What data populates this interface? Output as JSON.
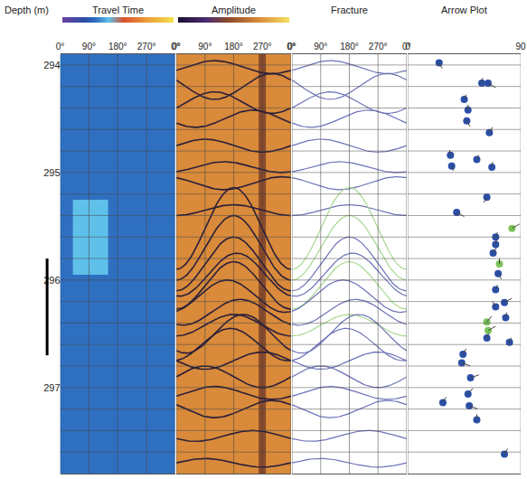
{
  "chart_data": {
    "type": "borehole_log",
    "depth_label": "Depth (m)",
    "ylim": [
      293.9,
      297.8
    ],
    "yticks": [
      294,
      295,
      296,
      297
    ],
    "yminor": [
      294.2,
      294.4,
      294.6,
      294.8,
      295.2,
      295.4,
      295.6,
      295.8,
      296.2,
      296.4,
      296.6,
      296.8,
      297.2,
      297.4,
      297.6
    ],
    "grid": true,
    "marked_interval": [
      295.8,
      296.7
    ],
    "tracks": [
      {
        "title": "Travel Time",
        "type": "heatmap",
        "xlim": [
          0,
          360
        ],
        "xticks": [
          {
            "value": 0,
            "label": "0°"
          },
          {
            "value": 90,
            "label": "90°"
          },
          {
            "value": 180,
            "label": "180°"
          },
          {
            "value": 270,
            "label": "270°"
          },
          {
            "value": 360,
            "label": "0°"
          }
        ],
        "x": [
          0,
          40,
          150,
          360
        ],
        "y": [
          293.9,
          295.25,
          295.95,
          297.8
        ],
        "cells": [
          [
            0.3,
            0.3,
            0.3
          ],
          [
            0.3,
            0.42,
            0.3
          ],
          [
            0.3,
            0.3,
            0.3
          ]
        ],
        "zlim": [
          0,
          1
        ]
      },
      {
        "title": "Amplitude",
        "type": "heatmap_fractures",
        "xlim": [
          0,
          360
        ],
        "xticks": [
          {
            "value": 0,
            "label": "0°"
          },
          {
            "value": 90,
            "label": "90°"
          },
          {
            "value": 180,
            "label": "180°"
          },
          {
            "value": 270,
            "label": "270°"
          },
          {
            "value": 360,
            "label": "0°"
          }
        ],
        "x": [
          0,
          258,
          282,
          360
        ],
        "y": [
          293.9,
          297.8
        ],
        "cells": [
          [
            0.72,
            0.45,
            0.72
          ]
        ],
        "zlim": [
          0,
          1
        ]
      },
      {
        "title": "Fracture",
        "type": "sinusoid",
        "xlim": [
          0,
          360
        ],
        "xticks": [
          {
            "value": 0,
            "label": "0°"
          },
          {
            "value": 90,
            "label": "90°"
          },
          {
            "value": 180,
            "label": "180°"
          },
          {
            "value": 270,
            "label": "270°"
          },
          {
            "value": 360,
            "label": "0°"
          }
        ]
      },
      {
        "title": "Arrow Plot",
        "type": "tadpole",
        "xlim": [
          0,
          90
        ],
        "xticks": [
          0,
          90
        ]
      }
    ],
    "fractures": [
      {
        "depth": 294.02,
        "amplitude": 0.06,
        "azimuth": 300,
        "color": "#6d72b8"
      },
      {
        "depth": 294.2,
        "amplitude": 0.12,
        "azimuth": 120,
        "color": "#6d72b8"
      },
      {
        "depth": 294.35,
        "amplitude": 0.1,
        "azimuth": 300,
        "color": "#6d72b8"
      },
      {
        "depth": 294.5,
        "amplitude": 0.08,
        "azimuth": 60,
        "color": "#6d72b8"
      },
      {
        "depth": 294.75,
        "amplitude": 0.06,
        "azimuth": 270,
        "color": "#6d72b8"
      },
      {
        "depth": 294.95,
        "amplitude": 0.05,
        "azimuth": 330,
        "color": "#6d72b8"
      },
      {
        "depth": 295.1,
        "amplitude": 0.06,
        "azimuth": 150,
        "color": "#6d72b8"
      },
      {
        "depth": 295.35,
        "amplitude": 0.05,
        "azimuth": 0,
        "color": "#6d72b8"
      },
      {
        "depth": 295.52,
        "amplitude": 0.38,
        "azimuth": 0,
        "color": "#a8d890"
      },
      {
        "depth": 295.7,
        "amplitude": 0.3,
        "azimuth": 0,
        "color": "#a8d890"
      },
      {
        "depth": 295.85,
        "amplitude": 0.25,
        "azimuth": 0,
        "color": "#6d72b8"
      },
      {
        "depth": 295.95,
        "amplitude": 0.2,
        "azimuth": 10,
        "color": "#6d72b8"
      },
      {
        "depth": 296.05,
        "amplitude": 0.22,
        "azimuth": 0,
        "color": "#a8d890"
      },
      {
        "depth": 296.15,
        "amplitude": 0.15,
        "azimuth": 340,
        "color": "#6d72b8"
      },
      {
        "depth": 296.3,
        "amplitude": 0.12,
        "azimuth": 20,
        "color": "#6d72b8"
      },
      {
        "depth": 296.42,
        "amplitude": 0.1,
        "azimuth": 0,
        "color": "#a8d890"
      },
      {
        "depth": 296.5,
        "amplitude": 0.18,
        "azimuth": 30,
        "color": "#6d72b8"
      },
      {
        "depth": 296.6,
        "amplitude": 0.15,
        "azimuth": 350,
        "color": "#6d72b8"
      },
      {
        "depth": 296.75,
        "amplitude": 0.08,
        "azimuth": 90,
        "color": "#6d72b8"
      },
      {
        "depth": 296.9,
        "amplitude": 0.1,
        "azimuth": 270,
        "color": "#6d72b8"
      },
      {
        "depth": 297.05,
        "amplitude": 0.06,
        "azimuth": 300,
        "color": "#6d72b8"
      },
      {
        "depth": 297.2,
        "amplitude": 0.08,
        "azimuth": 120,
        "color": "#6d72b8"
      },
      {
        "depth": 297.45,
        "amplitude": 0.05,
        "azimuth": 60,
        "color": "#6d72b8"
      },
      {
        "depth": 297.7,
        "amplitude": 0.04,
        "azimuth": 270,
        "color": "#6d72b8"
      }
    ],
    "dips": [
      {
        "depth": 293.98,
        "dip": 25,
        "azimuth": 150,
        "color": "#2b4fa8"
      },
      {
        "depth": 294.17,
        "dip": 59,
        "azimuth": 10,
        "color": "#2b4fa8"
      },
      {
        "depth": 294.17,
        "dip": 64,
        "azimuth": 120,
        "color": "#2b4fa8"
      },
      {
        "depth": 294.32,
        "dip": 45,
        "azimuth": 20,
        "color": "#2b4fa8"
      },
      {
        "depth": 294.42,
        "dip": 48,
        "azimuth": 0,
        "color": "#2b4fa8"
      },
      {
        "depth": 294.52,
        "dip": 47,
        "azimuth": 150,
        "color": "#2b4fa8"
      },
      {
        "depth": 294.63,
        "dip": 65,
        "azimuth": 30,
        "color": "#2b4fa8"
      },
      {
        "depth": 294.84,
        "dip": 34,
        "azimuth": 350,
        "color": "#2b4fa8"
      },
      {
        "depth": 294.88,
        "dip": 55,
        "azimuth": 20,
        "color": "#2b4fa8"
      },
      {
        "depth": 294.94,
        "dip": 35,
        "azimuth": 160,
        "color": "#2b4fa8"
      },
      {
        "depth": 294.95,
        "dip": 67,
        "azimuth": 10,
        "color": "#2b4fa8"
      },
      {
        "depth": 295.23,
        "dip": 63,
        "azimuth": 210,
        "color": "#2b4fa8"
      },
      {
        "depth": 295.37,
        "dip": 39,
        "azimuth": 120,
        "color": "#2b4fa8"
      },
      {
        "depth": 295.52,
        "dip": 83,
        "azimuth": 60,
        "color": "#7cc35a"
      },
      {
        "depth": 295.6,
        "dip": 70,
        "azimuth": 20,
        "color": "#2b4fa8"
      },
      {
        "depth": 295.67,
        "dip": 70,
        "azimuth": 10,
        "color": "#2b4fa8"
      },
      {
        "depth": 295.75,
        "dip": 68,
        "azimuth": 30,
        "color": "#2b4fa8"
      },
      {
        "depth": 295.85,
        "dip": 73,
        "azimuth": 0,
        "color": "#7cc35a"
      },
      {
        "depth": 295.94,
        "dip": 72,
        "azimuth": 150,
        "color": "#2b4fa8"
      },
      {
        "depth": 296.09,
        "dip": 70,
        "azimuth": 20,
        "color": "#2b4fa8"
      },
      {
        "depth": 296.21,
        "dip": 77,
        "azimuth": 60,
        "color": "#2b4fa8"
      },
      {
        "depth": 296.25,
        "dip": 70,
        "azimuth": 330,
        "color": "#2b4fa8"
      },
      {
        "depth": 296.35,
        "dip": 78,
        "azimuth": 10,
        "color": "#2b4fa8"
      },
      {
        "depth": 296.39,
        "dip": 63,
        "azimuth": 40,
        "color": "#7cc35a"
      },
      {
        "depth": 296.47,
        "dip": 64,
        "azimuth": 60,
        "color": "#7cc35a"
      },
      {
        "depth": 296.54,
        "dip": 63,
        "azimuth": 20,
        "color": "#2b4fa8"
      },
      {
        "depth": 296.58,
        "dip": 81,
        "azimuth": 20,
        "color": "#2b4fa8"
      },
      {
        "depth": 296.69,
        "dip": 44,
        "azimuth": 30,
        "color": "#2b4fa8"
      },
      {
        "depth": 296.77,
        "dip": 43,
        "azimuth": 110,
        "color": "#2b4fa8"
      },
      {
        "depth": 296.91,
        "dip": 50,
        "azimuth": 70,
        "color": "#2b4fa8"
      },
      {
        "depth": 297.06,
        "dip": 48,
        "azimuth": 40,
        "color": "#2b4fa8"
      },
      {
        "depth": 297.14,
        "dip": 28,
        "azimuth": 30,
        "color": "#2b4fa8"
      },
      {
        "depth": 297.17,
        "dip": 49,
        "azimuth": 110,
        "color": "#2b4fa8"
      },
      {
        "depth": 297.3,
        "dip": 55,
        "azimuth": 0,
        "color": "#2b4fa8"
      },
      {
        "depth": 297.62,
        "dip": 77,
        "azimuth": 30,
        "color": "#2b4fa8"
      }
    ]
  }
}
